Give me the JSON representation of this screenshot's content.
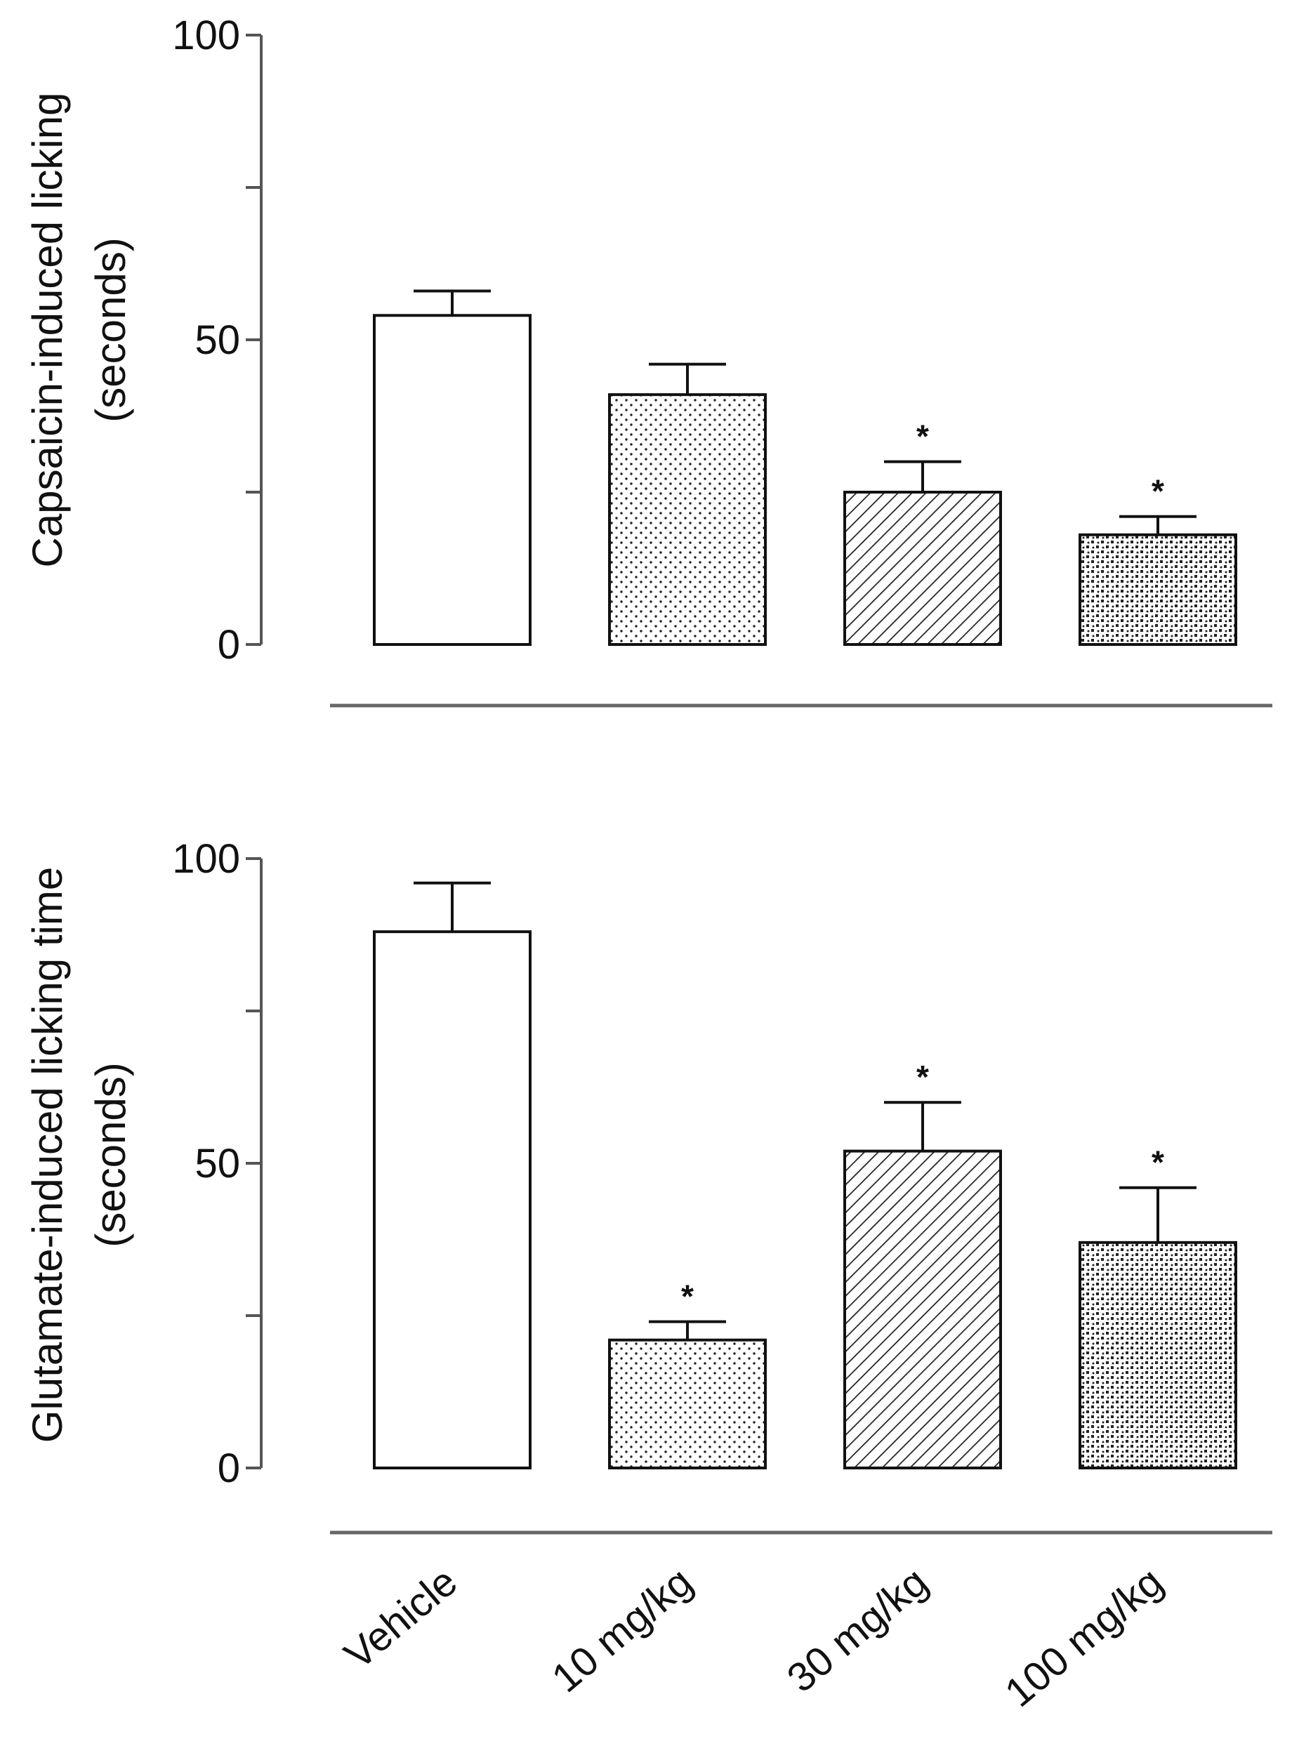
{
  "chart_data": [
    {
      "type": "bar",
      "categories": [
        "Vehicle",
        "10 mg/kg",
        "30 mg/kg",
        "100 mg/kg"
      ],
      "values": [
        54,
        41,
        25,
        18
      ],
      "errors": [
        4,
        5,
        5,
        3
      ],
      "significance": [
        "",
        "",
        "*",
        "*"
      ],
      "patterns": [
        "none",
        "dots",
        "diagonal",
        "checker"
      ],
      "ylabel_line1": "Capsaicin-induced licking",
      "ylabel_line2": "(seconds)",
      "ylim": [
        0,
        100
      ],
      "yticks": [
        0,
        25,
        50,
        75,
        100
      ],
      "ytick_labels": [
        "0",
        "",
        "50",
        "",
        "100"
      ]
    },
    {
      "type": "bar",
      "categories": [
        "Vehicle",
        "10 mg/kg",
        "30 mg/kg",
        "100 mg/kg"
      ],
      "values": [
        88,
        21,
        52,
        37
      ],
      "errors": [
        8,
        3,
        8,
        9
      ],
      "significance": [
        "",
        "*",
        "*",
        "*"
      ],
      "patterns": [
        "none",
        "dots",
        "diagonal",
        "checker"
      ],
      "ylabel_line1": "Glutamate-induced licking time",
      "ylabel_line2": "(seconds)",
      "ylim": [
        0,
        100
      ],
      "yticks": [
        0,
        25,
        50,
        75,
        100
      ],
      "ytick_labels": [
        "0",
        "",
        "50",
        "",
        "100"
      ]
    }
  ],
  "colors": {
    "stroke": "#111111",
    "baseline": "#666666",
    "fill": "#ffffff"
  }
}
